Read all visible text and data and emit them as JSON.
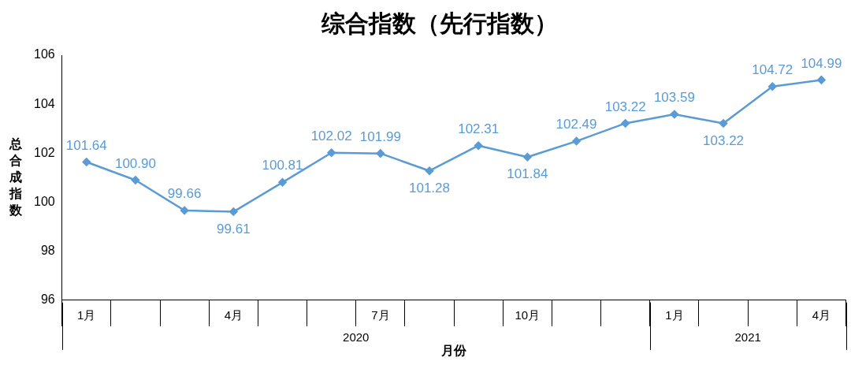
{
  "chart_data": {
    "type": "line",
    "title": "综合指数（先行指数）",
    "xlabel": "月份",
    "ylabel": "总合成指数",
    "categories": [
      "1月",
      null,
      null,
      "4月",
      null,
      null,
      "7月",
      null,
      null,
      "10月",
      null,
      null,
      "1月",
      null,
      null,
      "4月"
    ],
    "series": [
      {
        "color": "#5b9bd5",
        "values": [
          101.64,
          100.9,
          99.66,
          99.61,
          100.81,
          102.02,
          101.99,
          101.28,
          102.31,
          101.84,
          102.49,
          103.22,
          103.59,
          103.22,
          104.72,
          104.99
        ],
        "value_labels": [
          "101.64",
          "100.90",
          "99.66",
          "99.61",
          "100.81",
          "102.02",
          "101.99",
          "101.28",
          "102.31",
          "101.84",
          "102.49",
          "103.22",
          "103.59",
          "103.22",
          "104.72",
          "104.99"
        ]
      }
    ],
    "ylim": [
      96,
      106
    ],
    "yticks": [
      96,
      98,
      100,
      102,
      104,
      106
    ],
    "grid": false,
    "legend": false,
    "marker": "diamond",
    "line_style": "solid",
    "annotations": [
      "2020",
      "2021"
    ]
  }
}
